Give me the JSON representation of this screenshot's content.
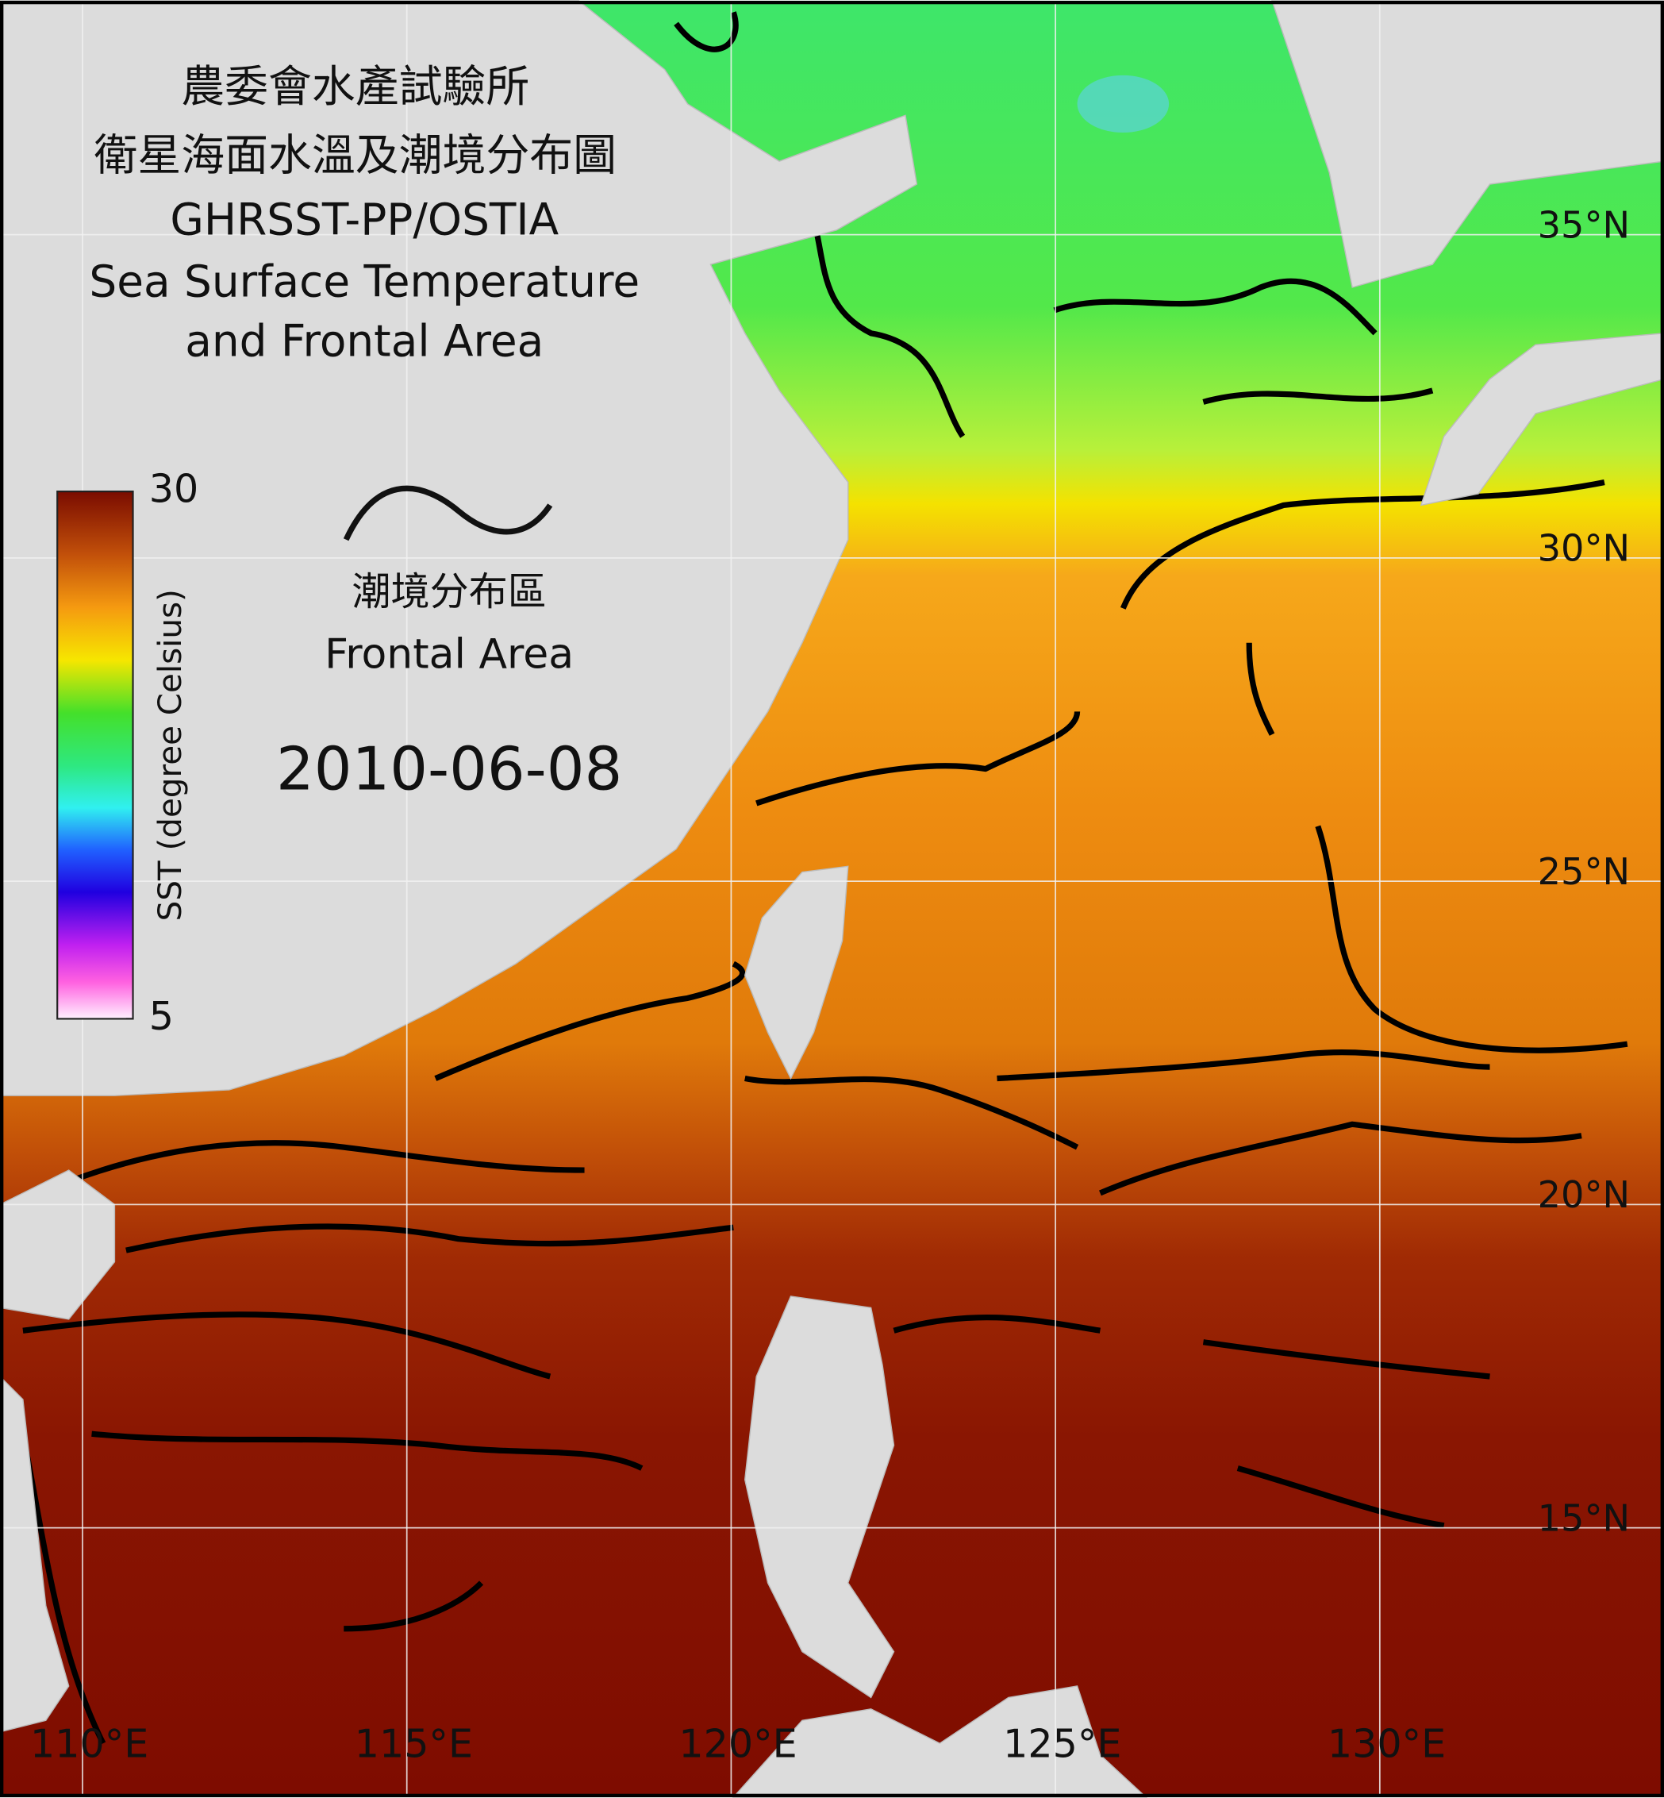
{
  "header": {
    "line1": "農委會水產試驗所",
    "line2": "衛星海面水溫及潮境分布圖",
    "line3": "GHRSST-PP/OSTIA",
    "line4": "Sea Surface Temperature",
    "line5": "and Frontal Area"
  },
  "colorbar": {
    "label": "SST (degree Celsius)",
    "range": [
      5,
      30
    ],
    "ticks": [
      5,
      30
    ]
  },
  "legend": {
    "label_zh": "潮境分布區",
    "label_en": "Frontal Area"
  },
  "date": "2010-06-08",
  "graticule": {
    "latitudes": [
      {
        "value": 35,
        "label": "35°N"
      },
      {
        "value": 30,
        "label": "30°N"
      },
      {
        "value": 25,
        "label": "25°N"
      },
      {
        "value": 20,
        "label": "20°N"
      },
      {
        "value": 15,
        "label": "15°N"
      }
    ],
    "longitudes": [
      {
        "value": 110,
        "label": "110°E"
      },
      {
        "value": 115,
        "label": "115°E"
      },
      {
        "value": 120,
        "label": "120°E"
      },
      {
        "value": 125,
        "label": "125°E"
      },
      {
        "value": 130,
        "label": "130°E"
      }
    ]
  }
}
